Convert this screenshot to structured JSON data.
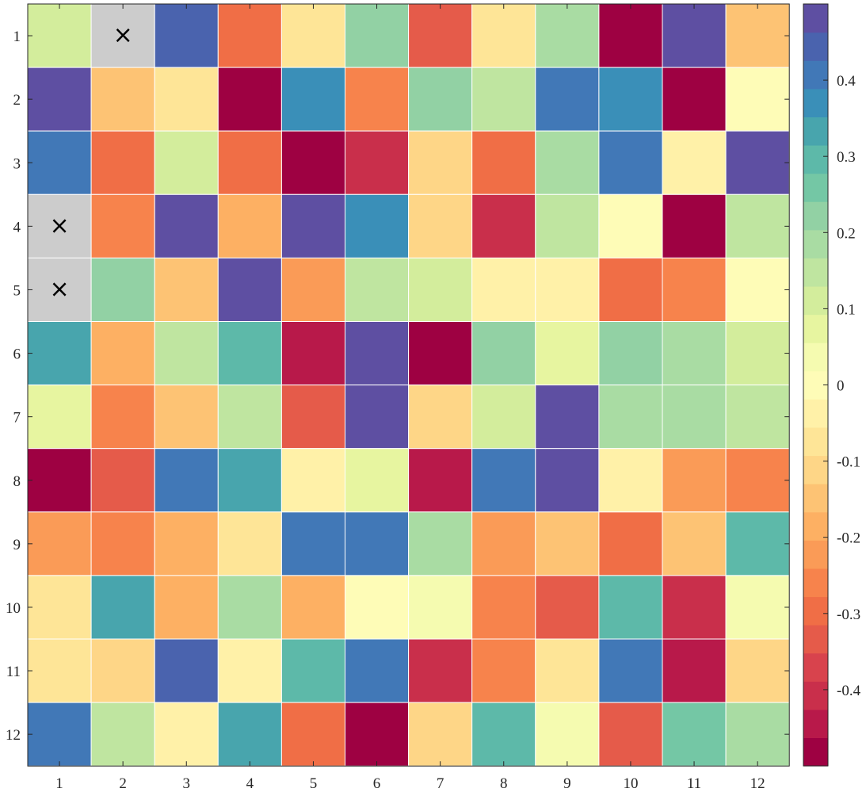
{
  "chart_data": {
    "type": "heatmap",
    "title": "",
    "xlabel": "",
    "ylabel": "",
    "x_ticks": [
      "1",
      "2",
      "3",
      "4",
      "5",
      "6",
      "7",
      "8",
      "9",
      "10",
      "11",
      "12"
    ],
    "y_ticks": [
      "1",
      "2",
      "3",
      "4",
      "5",
      "6",
      "7",
      "8",
      "9",
      "10",
      "11",
      "12"
    ],
    "missing_marker": "×",
    "missing_color": "#cccccc",
    "grid_color": "#ffffff",
    "colorbar": {
      "range": [
        -0.5,
        0.5
      ],
      "tick_values": [
        -0.4,
        -0.3,
        -0.2,
        -0.1,
        0,
        0.1,
        0.2,
        0.3,
        0.4
      ],
      "tick_labels": [
        "-0.4",
        "-0.3",
        "-0.2",
        "-0.1",
        "0",
        "0.1",
        "0.2",
        "0.3",
        "0.4"
      ],
      "colormap": [
        "#9e0142",
        "#b8194a",
        "#c92f4b",
        "#d8434d",
        "#e55b4a",
        "#f06e46",
        "#f7834c",
        "#fa9b57",
        "#fdb063",
        "#fdc374",
        "#fed687",
        "#fee597",
        "#fff1a8",
        "#fefcb7",
        "#f5fbb0",
        "#e7f5a0",
        "#d3ed9c",
        "#bfe5a0",
        "#a9dca3",
        "#92d1a4",
        "#74c7a5",
        "#5db9a9",
        "#48a5ad",
        "#3a8fb8",
        "#4178b7",
        "#4a63ae",
        "#5e4fa2"
      ]
    },
    "rows": [
      [
        0.1,
        null,
        0.44,
        -0.28,
        -0.07,
        0.22,
        -0.35,
        -0.07,
        0.18,
        -0.49,
        0.47,
        -0.16
      ],
      [
        0.47,
        -0.16,
        -0.07,
        -0.49,
        0.36,
        -0.26,
        0.22,
        0.14,
        0.4,
        0.36,
        -0.49,
        0.01
      ],
      [
        0.4,
        -0.31,
        0.1,
        -0.31,
        -0.49,
        -0.4,
        -0.11,
        -0.28,
        0.18,
        0.4,
        -0.04,
        0.47
      ],
      [
        null,
        -0.26,
        0.49,
        -0.19,
        0.49,
        0.36,
        -0.11,
        -0.4,
        0.14,
        0.01,
        -0.49,
        0.14
      ],
      [
        null,
        0.22,
        -0.16,
        0.47,
        -0.23,
        0.14,
        0.1,
        -0.04,
        -0.04,
        -0.29,
        -0.26,
        -0.01
      ],
      [
        0.33,
        -0.19,
        0.14,
        0.28,
        -0.44,
        0.47,
        -0.49,
        0.22,
        0.07,
        0.22,
        0.18,
        0.1
      ],
      [
        0.06,
        -0.26,
        -0.16,
        0.14,
        -0.35,
        0.49,
        -0.11,
        0.1,
        0.49,
        0.18,
        0.18,
        0.14
      ],
      [
        -0.49,
        -0.35,
        0.4,
        0.32,
        -0.02,
        0.06,
        -0.44,
        0.4,
        0.47,
        -0.04,
        -0.23,
        -0.26
      ],
      [
        -0.23,
        -0.26,
        -0.19,
        -0.07,
        0.4,
        0.4,
        0.18,
        -0.23,
        -0.16,
        -0.31,
        -0.16,
        0.28
      ],
      [
        -0.07,
        0.35,
        -0.19,
        0.18,
        -0.19,
        -0.01,
        0.02,
        -0.26,
        -0.35,
        0.28,
        -0.4,
        0.04
      ],
      [
        -0.07,
        -0.11,
        0.44,
        -0.02,
        0.28,
        0.4,
        -0.4,
        -0.26,
        -0.07,
        0.4,
        -0.44,
        -0.1
      ],
      [
        0.4,
        0.14,
        -0.02,
        0.33,
        -0.31,
        -0.49,
        -0.11,
        0.28,
        0.04,
        -0.35,
        0.25,
        0.18
      ]
    ]
  }
}
